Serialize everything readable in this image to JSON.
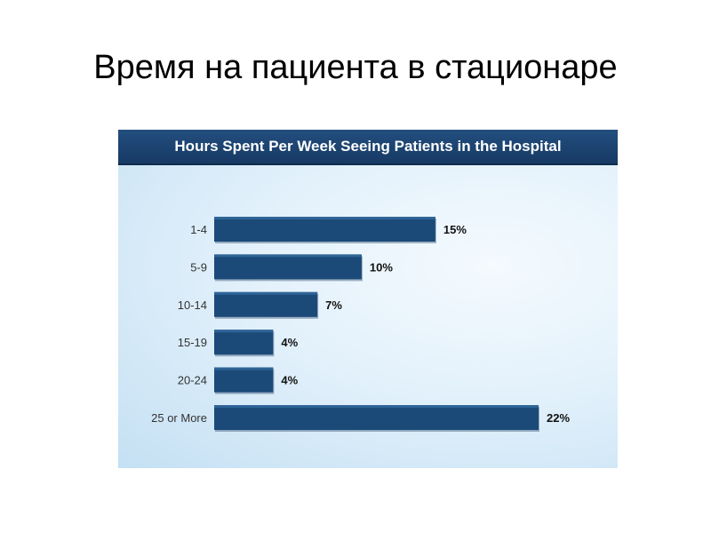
{
  "slide": {
    "title": "Время на пациента в стационаре"
  },
  "chart_data": {
    "type": "bar",
    "orientation": "horizontal",
    "title": "Hours Spent Per Week Seeing Patients in the Hospital",
    "categories": [
      "1-4",
      "5-9",
      "10-14",
      "15-19",
      "20-24",
      "25 or More"
    ],
    "values": [
      15,
      10,
      7,
      4,
      4,
      22
    ],
    "value_labels": [
      "15%",
      "10%",
      "7%",
      "4%",
      "4%",
      "22%"
    ],
    "unit": "%",
    "xlim": [
      0,
      22
    ],
    "grid": false,
    "legend": "none",
    "colors": {
      "bar": "#1b4a78",
      "bar_shadow": "#0e2e52",
      "label": "#333333",
      "value_label": "#111111",
      "header": "#1b4372"
    }
  }
}
